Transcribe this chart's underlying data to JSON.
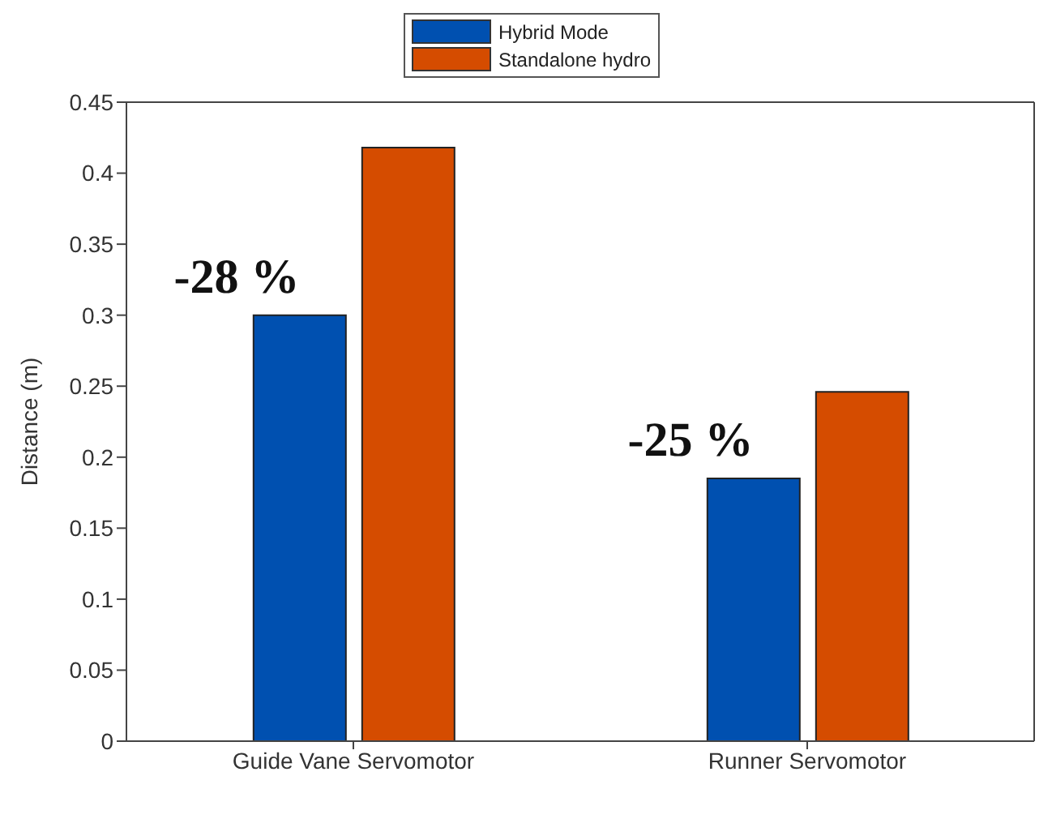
{
  "chart_data": {
    "type": "bar",
    "ylabel": "Distance (m)",
    "categories": [
      "Guide Vane Servomotor",
      "Runner Servomotor"
    ],
    "series": [
      {
        "name": "Hybrid Mode",
        "color": "#0050b0",
        "values": [
          0.3,
          0.185
        ]
      },
      {
        "name": "Standalone hydro",
        "color": "#d54c00",
        "values": [
          0.418,
          0.246
        ]
      }
    ],
    "ylim": [
      0,
      0.45
    ],
    "yticks": [
      0,
      0.05,
      0.1,
      0.15,
      0.2,
      0.25,
      0.3,
      0.35,
      0.4,
      0.45
    ],
    "grid": false,
    "legend": "top",
    "annotations": [
      {
        "text": "-28 %",
        "x": "Guide Vane Servomotor",
        "y": 0.3
      },
      {
        "text": "-25 %",
        "x": "Runner Servomotor",
        "y": 0.185
      }
    ]
  }
}
